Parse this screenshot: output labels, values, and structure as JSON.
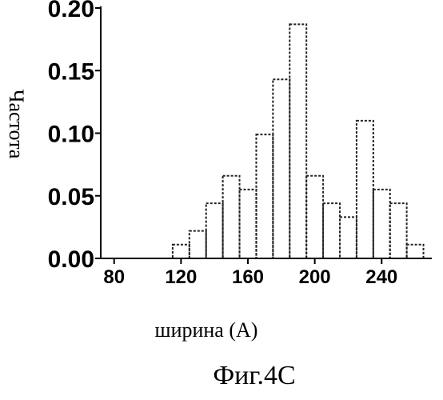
{
  "chart_data": {
    "type": "bar",
    "title": "",
    "xlabel": "ширина (А)",
    "ylabel": "Частота",
    "caption": "Фиг.4С",
    "xlim": [
      72,
      270
    ],
    "ylim": [
      0,
      0.2
    ],
    "xticks": [
      "80",
      "120",
      "160",
      "200",
      "240"
    ],
    "xtick_values": [
      80,
      120,
      160,
      200,
      240
    ],
    "yticks": [
      "0.00",
      "0.05",
      "0.10",
      "0.15",
      "0.20"
    ],
    "ytick_values": [
      0.0,
      0.05,
      0.1,
      0.15,
      0.2
    ],
    "grid": false,
    "bin_width": 10,
    "bin_starts": [
      115,
      125,
      135,
      145,
      155,
      165,
      175,
      185,
      195,
      205,
      215,
      225,
      235,
      245,
      255
    ],
    "values": [
      0.011,
      0.022,
      0.044,
      0.066,
      0.055,
      0.099,
      0.143,
      0.187,
      0.066,
      0.044,
      0.033,
      0.11,
      0.055,
      0.044,
      0.011
    ]
  }
}
